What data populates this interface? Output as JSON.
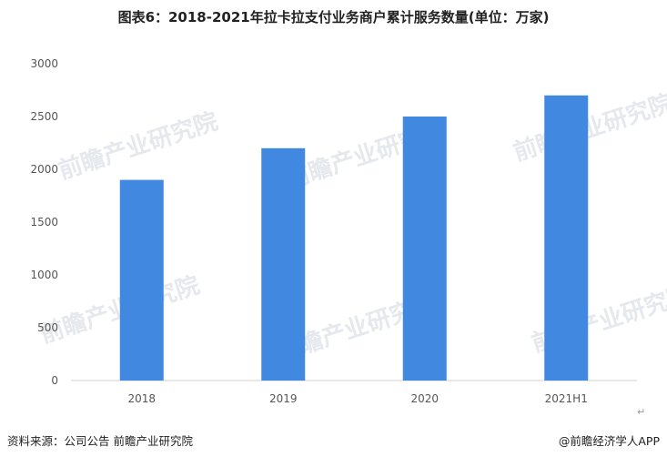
{
  "title": "图表6：2018-2021年拉卡拉支付业务商户累计服务数量(单位：万家)",
  "watermark": "前瞻产业研究院",
  "source": "资料来源：公司公告 前瞻产业研究院",
  "credit": "@前瞻经济学人APP",
  "enter_mark": "↵",
  "chart_data": {
    "type": "bar",
    "title": "图表6：2018-2021年拉卡拉支付业务商户累计服务数量(单位：万家)",
    "categories": [
      "2018",
      "2019",
      "2020",
      "2021H1"
    ],
    "values": [
      1900,
      2200,
      2500,
      2700
    ],
    "ylim": [
      0,
      3000
    ],
    "yticks": [
      0,
      500,
      1000,
      1500,
      2000,
      2500,
      3000
    ],
    "bar_color": "#4189e0",
    "grid": false,
    "legend": "none"
  }
}
